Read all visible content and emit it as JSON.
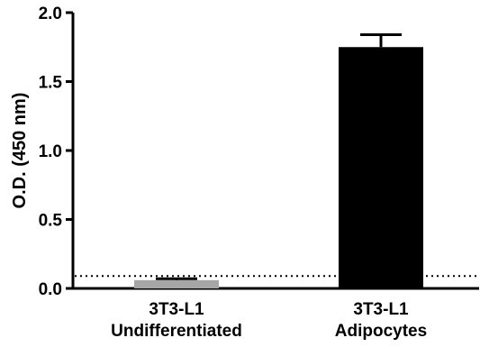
{
  "chart_data": {
    "type": "bar",
    "title": "",
    "ylabel": "O.D. (450 nm)",
    "xlabel": "",
    "ylim": [
      0,
      2.0
    ],
    "yticks": [
      0.0,
      0.5,
      1.0,
      1.5,
      2.0
    ],
    "ytick_labels": [
      "0.0",
      "0.5",
      "1.0",
      "1.5",
      "2.0"
    ],
    "categories": [
      {
        "line1": "3T3-L1",
        "line2": "Undifferentiated"
      },
      {
        "line1": "3T3-L1",
        "line2": "Adipocytes"
      }
    ],
    "values": [
      0.06,
      1.75
    ],
    "errors": [
      0.01,
      0.09
    ],
    "bar_colors": [
      "#a6a6a6",
      "#000000"
    ],
    "reference_line": {
      "value": 0.09,
      "style": "dotted"
    },
    "grid": false,
    "legend": "none"
  }
}
